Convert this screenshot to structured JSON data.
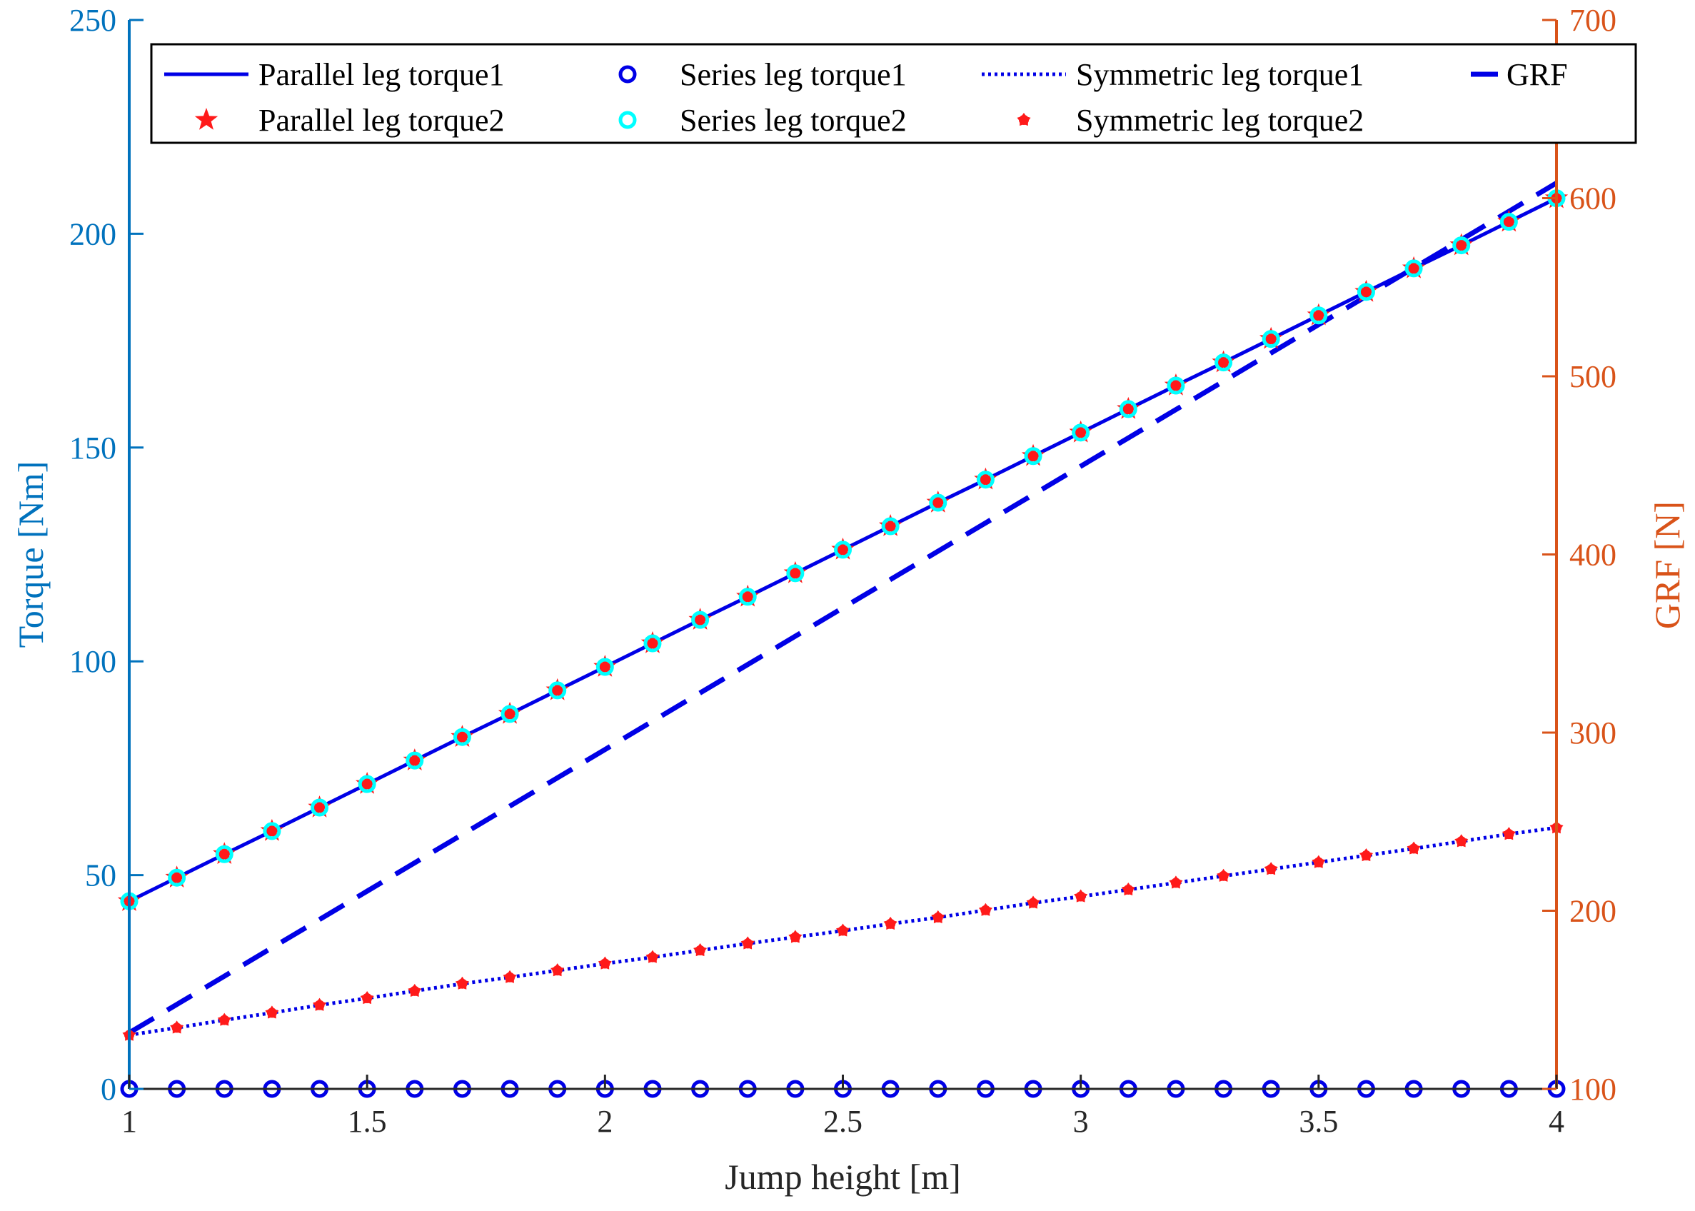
{
  "colors": {
    "left_axis": "#0072BD",
    "right_axis": "#D95319",
    "series_blue": "#0000E6",
    "series_red": "#FF1A1A",
    "series_cyan": "#00FFFF",
    "x_axis": "#262626"
  },
  "chart_data": {
    "type": "line",
    "xlabel": "Jump height [m]",
    "ylabel_left": "Torque [Nm]",
    "ylabel_right": "GRF [N]",
    "xlim": [
      1,
      4
    ],
    "ylim_left": [
      0,
      250
    ],
    "ylim_right": [
      100,
      700
    ],
    "xticks": [
      "1",
      "1.5",
      "2",
      "2.5",
      "3",
      "3.5",
      "4"
    ],
    "yticks_left": [
      "0",
      "50",
      "100",
      "150",
      "200",
      "250"
    ],
    "yticks_right": [
      "100",
      "200",
      "300",
      "400",
      "500",
      "600",
      "700"
    ],
    "x": [
      1.0,
      1.1,
      1.2,
      1.3,
      1.4,
      1.5,
      1.6,
      1.7,
      1.8,
      1.9,
      2.0,
      2.1,
      2.2,
      2.3,
      2.4,
      2.5,
      2.6,
      2.7,
      2.8,
      2.9,
      3.0,
      3.1,
      3.2,
      3.3,
      3.4,
      3.5,
      3.6,
      3.7,
      3.8,
      3.9,
      4.0
    ],
    "legend_location": "top",
    "series": [
      {
        "name": "Parallel leg torque1",
        "axis": "left",
        "style": "solid-line",
        "values": [
          43.9,
          49.4,
          54.9,
          60.3,
          65.8,
          71.3,
          76.8,
          82.3,
          87.7,
          93.2,
          98.7,
          104.2,
          109.7,
          115.1,
          120.6,
          126.1,
          131.6,
          137.1,
          142.5,
          148.0,
          153.5,
          159.0,
          164.5,
          169.9,
          175.4,
          180.9,
          186.4,
          191.9,
          197.3,
          202.8,
          208.3
        ]
      },
      {
        "name": "Parallel leg torque2",
        "axis": "left",
        "style": "star-marker",
        "values": [
          43.9,
          49.4,
          54.9,
          60.3,
          65.8,
          71.3,
          76.8,
          82.3,
          87.7,
          93.2,
          98.7,
          104.2,
          109.7,
          115.1,
          120.6,
          126.1,
          131.6,
          137.1,
          142.5,
          148.0,
          153.5,
          159.0,
          164.5,
          169.9,
          175.4,
          180.9,
          186.4,
          191.9,
          197.3,
          202.8,
          208.3
        ]
      },
      {
        "name": "Series leg torque1",
        "axis": "left",
        "style": "circle-marker-blue",
        "values": [
          0,
          0,
          0,
          0,
          0,
          0,
          0,
          0,
          0,
          0,
          0,
          0,
          0,
          0,
          0,
          0,
          0,
          0,
          0,
          0,
          0,
          0,
          0,
          0,
          0,
          0,
          0,
          0,
          0,
          0,
          0
        ]
      },
      {
        "name": "Series leg torque2",
        "axis": "left",
        "style": "circle-marker-cyan",
        "values": [
          43.9,
          49.4,
          54.9,
          60.3,
          65.8,
          71.3,
          76.8,
          82.3,
          87.7,
          93.2,
          98.7,
          104.2,
          109.7,
          115.1,
          120.6,
          126.1,
          131.6,
          137.1,
          142.5,
          148.0,
          153.5,
          159.0,
          164.5,
          169.9,
          175.4,
          180.9,
          186.4,
          191.9,
          197.3,
          202.8,
          208.3
        ]
      },
      {
        "name": "Symmetric leg torque1",
        "axis": "left",
        "style": "dotted-line",
        "values": [
          12.6,
          14.3,
          16.1,
          17.8,
          19.6,
          21.2,
          22.9,
          24.6,
          26.1,
          27.7,
          29.3,
          30.8,
          32.4,
          34.0,
          35.5,
          37.0,
          38.6,
          40.1,
          41.8,
          43.5,
          45.0,
          46.6,
          48.2,
          49.8,
          51.4,
          53.0,
          54.6,
          56.2,
          57.9,
          59.6,
          61.1
        ]
      },
      {
        "name": "Symmetric leg torque2",
        "axis": "left",
        "style": "dot-marker",
        "values": [
          12.6,
          14.3,
          16.1,
          17.8,
          19.6,
          21.2,
          22.9,
          24.6,
          26.1,
          27.7,
          29.3,
          30.8,
          32.4,
          34.0,
          35.5,
          37.0,
          38.6,
          40.1,
          41.8,
          43.5,
          45.0,
          46.6,
          48.2,
          49.8,
          51.4,
          53.0,
          54.6,
          56.2,
          57.9,
          59.6,
          61.1
        ]
      },
      {
        "name": "GRF",
        "axis": "right",
        "style": "dashed-line",
        "values": [
          131.5,
          147.4,
          163.3,
          179.2,
          195.1,
          211.0,
          226.9,
          242.8,
          258.7,
          274.6,
          290.5,
          306.4,
          322.3,
          338.2,
          354.1,
          370.0,
          385.9,
          401.8,
          417.7,
          433.6,
          449.5,
          465.4,
          481.3,
          497.2,
          513.1,
          529.0,
          544.9,
          560.8,
          576.7,
          592.6,
          608.5
        ]
      }
    ]
  }
}
